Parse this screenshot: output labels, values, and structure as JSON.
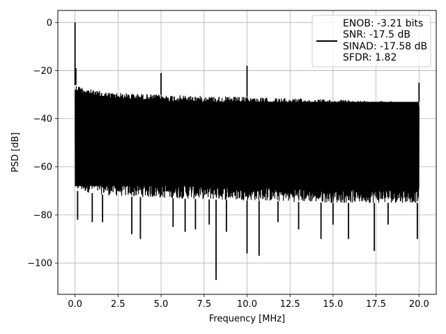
{
  "chart_data": {
    "type": "line",
    "xlabel": "Frequency [MHz]",
    "ylabel": "PSD [dB]",
    "xlim": [
      -1.0,
      21.0
    ],
    "ylim": [
      -113,
      5
    ],
    "x_ticks": [
      0.0,
      2.5,
      5.0,
      7.5,
      10.0,
      12.5,
      15.0,
      17.5,
      20.0
    ],
    "x_tick_labels": [
      "0.0",
      "2.5",
      "5.0",
      "7.5",
      "10.0",
      "12.5",
      "15.0",
      "17.5",
      "20.0"
    ],
    "y_ticks": [
      0,
      -20,
      -40,
      -60,
      -80,
      -100
    ],
    "y_tick_labels": [
      "0",
      "−20",
      "−40",
      "−60",
      "−80",
      "−100"
    ],
    "grid": true,
    "legend_position": "top-right",
    "series_color": "#000000",
    "legend_lines": [
      "ENOB: -3.21 bits",
      "SNR: -17.5 dB",
      "SINAD: -17.58 dB",
      "SFDR: 1.82"
    ],
    "series": [
      {
        "style": "noise-spectrum",
        "x_range": [
          0.0,
          20.0
        ],
        "upper_envelope": [
          [
            0.1,
            -26
          ],
          [
            1,
            -28
          ],
          [
            2,
            -29
          ],
          [
            5,
            -30
          ],
          [
            10,
            -31
          ],
          [
            15,
            -32
          ],
          [
            20,
            -33
          ]
        ],
        "lower_envelope": [
          [
            0.1,
            -70
          ],
          [
            2,
            -72
          ],
          [
            5,
            -73
          ],
          [
            10,
            -74
          ],
          [
            15,
            -75
          ],
          [
            20,
            -75
          ]
        ],
        "spikes": [
          {
            "x": 0.0,
            "y": 0
          },
          {
            "x": 0.05,
            "y": -19
          },
          {
            "x": 5.0,
            "y": -21
          },
          {
            "x": 10.0,
            "y": -18
          },
          {
            "x": 20.0,
            "y": -25
          }
        ],
        "dips": [
          {
            "x": 0.15,
            "y": -82
          },
          {
            "x": 1.0,
            "y": -83
          },
          {
            "x": 1.6,
            "y": -83
          },
          {
            "x": 3.3,
            "y": -88
          },
          {
            "x": 3.8,
            "y": -90
          },
          {
            "x": 5.7,
            "y": -85
          },
          {
            "x": 6.4,
            "y": -87
          },
          {
            "x": 7.0,
            "y": -86
          },
          {
            "x": 7.8,
            "y": -84
          },
          {
            "x": 8.2,
            "y": -107
          },
          {
            "x": 8.8,
            "y": -87
          },
          {
            "x": 10.0,
            "y": -96
          },
          {
            "x": 10.7,
            "y": -97
          },
          {
            "x": 11.8,
            "y": -83
          },
          {
            "x": 13.0,
            "y": -86
          },
          {
            "x": 14.3,
            "y": -90
          },
          {
            "x": 15.0,
            "y": -84
          },
          {
            "x": 15.9,
            "y": -90
          },
          {
            "x": 17.4,
            "y": -95
          },
          {
            "x": 18.2,
            "y": -84
          },
          {
            "x": 19.9,
            "y": -90
          }
        ]
      }
    ]
  }
}
